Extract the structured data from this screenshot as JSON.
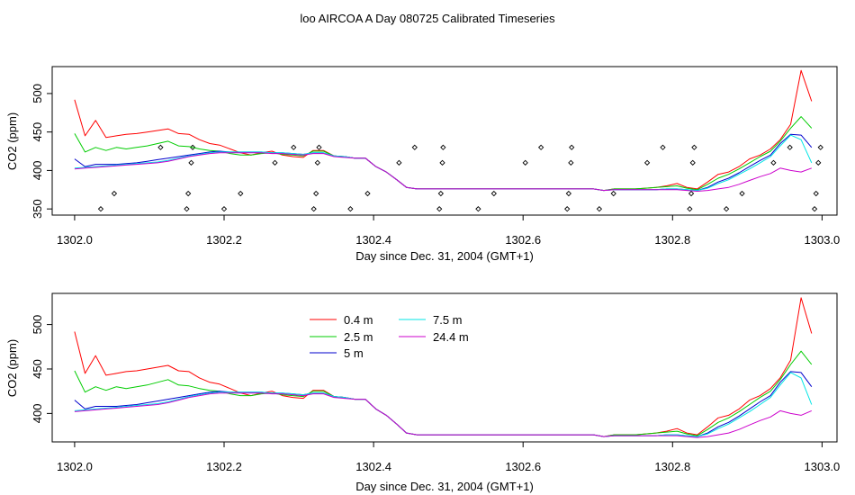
{
  "page": {
    "title": "loo AIRCOA A  Day 080725  Calibrated Timeseries"
  },
  "chart_data": [
    {
      "type": "line",
      "xlabel": "Day since Dec. 31, 2004 (GMT+1)",
      "ylabel": "CO2 (ppm)",
      "xlim": [
        1301.97,
        1303.02
      ],
      "ylim": [
        342,
        535
      ],
      "xticks": [
        1302.0,
        1302.2,
        1302.4,
        1302.6,
        1302.8,
        1303.0
      ],
      "xtick_labels": [
        "1302.0",
        "1302.2",
        "1302.4",
        "1302.6",
        "1302.8",
        "1303.0"
      ],
      "yticks": [
        350,
        400,
        450,
        500
      ],
      "ytick_labels": [
        "350",
        "400",
        "450",
        "500"
      ],
      "legend": null,
      "flags": {
        "x": [
          1302.035,
          1302.053,
          1302.115,
          1302.15,
          1302.152,
          1302.156,
          1302.158,
          1302.2,
          1302.222,
          1302.268,
          1302.293,
          1302.32,
          1302.323,
          1302.325,
          1302.327,
          1302.369,
          1302.392,
          1302.434,
          1302.455,
          1302.488,
          1302.49,
          1302.492,
          1302.493,
          1302.54,
          1302.561,
          1302.603,
          1302.624,
          1302.659,
          1302.661,
          1302.664,
          1302.665,
          1302.702,
          1302.721,
          1302.766,
          1302.787,
          1302.823,
          1302.825,
          1302.827,
          1302.829,
          1302.872,
          1302.893,
          1302.935,
          1302.957,
          1302.99,
          1302.992,
          1302.995,
          1302.998
        ],
        "y": [
          350,
          370,
          430,
          350,
          370,
          410,
          430,
          350,
          370,
          410,
          430,
          350,
          370,
          410,
          430,
          350,
          370,
          410,
          430,
          350,
          370,
          410,
          430,
          350,
          370,
          410,
          430,
          350,
          370,
          410,
          430,
          350,
          370,
          410,
          430,
          350,
          370,
          410,
          430,
          350,
          370,
          410,
          430,
          350,
          370,
          410,
          430
        ]
      },
      "x": [
        1302.0,
        1302.014,
        1302.028,
        1302.042,
        1302.056,
        1302.069,
        1302.083,
        1302.097,
        1302.111,
        1302.125,
        1302.139,
        1302.153,
        1302.167,
        1302.181,
        1302.194,
        1302.208,
        1302.222,
        1302.236,
        1302.25,
        1302.264,
        1302.278,
        1302.292,
        1302.306,
        1302.319,
        1302.333,
        1302.347,
        1302.361,
        1302.375,
        1302.389,
        1302.403,
        1302.417,
        1302.431,
        1302.444,
        1302.458,
        1302.472,
        1302.486,
        1302.5,
        1302.514,
        1302.528,
        1302.542,
        1302.556,
        1302.569,
        1302.583,
        1302.597,
        1302.611,
        1302.625,
        1302.639,
        1302.653,
        1302.667,
        1302.681,
        1302.694,
        1302.708,
        1302.722,
        1302.736,
        1302.75,
        1302.764,
        1302.778,
        1302.792,
        1302.806,
        1302.819,
        1302.833,
        1302.847,
        1302.861,
        1302.875,
        1302.889,
        1302.903,
        1302.917,
        1302.931,
        1302.944,
        1302.958,
        1302.972,
        1302.986
      ],
      "series": [
        {
          "name": "0.4 m",
          "color": "#ff0000",
          "values": [
            492,
            445,
            465,
            443,
            445,
            447,
            448,
            450,
            452,
            454,
            448,
            447,
            440,
            435,
            433,
            428,
            423,
            420,
            423,
            425,
            420,
            418,
            417,
            426,
            426,
            419,
            418,
            416,
            416,
            405,
            398,
            388,
            378,
            376,
            376,
            376,
            376,
            376,
            376,
            376,
            376,
            376,
            376,
            376,
            376,
            376,
            376,
            376,
            376,
            376,
            376,
            374,
            376,
            376,
            376,
            377,
            378,
            380,
            383,
            378,
            376,
            385,
            395,
            398,
            405,
            415,
            420,
            428,
            440,
            460,
            530,
            490
          ]
        },
        {
          "name": "2.5 m",
          "color": "#00cc00",
          "values": [
            448,
            424,
            430,
            426,
            430,
            428,
            430,
            432,
            435,
            438,
            432,
            431,
            428,
            426,
            425,
            422,
            420,
            420,
            422,
            423,
            421,
            420,
            419,
            425,
            425,
            419,
            418,
            416,
            416,
            405,
            398,
            388,
            378,
            376,
            376,
            376,
            376,
            376,
            376,
            376,
            376,
            376,
            376,
            376,
            376,
            376,
            376,
            376,
            376,
            376,
            376,
            374,
            376,
            376,
            376,
            377,
            378,
            379,
            380,
            377,
            375,
            382,
            390,
            395,
            402,
            410,
            418,
            425,
            438,
            455,
            470,
            455
          ]
        },
        {
          "name": "5 m",
          "color": "#0000cc",
          "values": [
            415,
            405,
            408,
            408,
            408,
            409,
            410,
            412,
            414,
            416,
            418,
            420,
            422,
            424,
            425,
            424,
            424,
            424,
            424,
            423,
            423,
            422,
            421,
            423,
            423,
            419,
            418,
            416,
            416,
            405,
            398,
            388,
            378,
            376,
            376,
            376,
            376,
            376,
            376,
            376,
            376,
            376,
            376,
            376,
            376,
            376,
            376,
            376,
            376,
            376,
            376,
            374,
            375,
            375,
            375,
            375,
            375,
            376,
            376,
            375,
            374,
            378,
            385,
            390,
            397,
            405,
            413,
            420,
            435,
            447,
            446,
            430
          ]
        },
        {
          "name": "7.5 m",
          "color": "#00e5e5",
          "values": [
            403,
            404,
            405,
            406,
            407,
            408,
            409,
            410,
            411,
            413,
            416,
            419,
            421,
            423,
            424,
            424,
            424,
            424,
            424,
            423,
            423,
            422,
            421,
            423,
            423,
            419,
            418,
            416,
            416,
            405,
            398,
            388,
            378,
            376,
            376,
            376,
            376,
            376,
            376,
            376,
            376,
            376,
            376,
            376,
            376,
            376,
            376,
            376,
            376,
            376,
            376,
            374,
            375,
            375,
            375,
            375,
            375,
            376,
            376,
            375,
            374,
            377,
            383,
            388,
            395,
            402,
            410,
            418,
            432,
            446,
            440,
            410
          ]
        },
        {
          "name": "24.4 m",
          "color": "#cc00cc",
          "values": [
            402,
            403,
            404,
            405,
            406,
            407,
            408,
            409,
            410,
            412,
            415,
            418,
            420,
            422,
            423,
            423,
            423,
            423,
            423,
            422,
            422,
            421,
            420,
            422,
            422,
            418,
            417,
            416,
            416,
            405,
            398,
            388,
            378,
            376,
            376,
            376,
            376,
            376,
            376,
            376,
            376,
            376,
            376,
            376,
            376,
            376,
            376,
            376,
            376,
            376,
            376,
            374,
            375,
            375,
            375,
            375,
            375,
            375,
            375,
            374,
            373,
            374,
            376,
            378,
            382,
            387,
            392,
            396,
            403,
            400,
            398,
            403
          ]
        }
      ]
    },
    {
      "type": "line",
      "xlabel": "Day since Dec. 31, 2004 (GMT+1)",
      "ylabel": "CO2 (ppm)",
      "xlim": [
        1301.97,
        1303.02
      ],
      "ylim": [
        368,
        535
      ],
      "xticks": [
        1302.0,
        1302.2,
        1302.4,
        1302.6,
        1302.8,
        1303.0
      ],
      "xtick_labels": [
        "1302.0",
        "1302.2",
        "1302.4",
        "1302.6",
        "1302.8",
        "1303.0"
      ],
      "yticks": [
        400,
        450,
        500
      ],
      "ytick_labels": [
        "400",
        "450",
        "500"
      ],
      "legend": {
        "placement": "top-left",
        "entries": [
          {
            "label": "0.4 m",
            "color": "#ff0000"
          },
          {
            "label": "2.5 m",
            "color": "#00cc00"
          },
          {
            "label": "5 m",
            "color": "#0000cc"
          },
          {
            "label": "7.5 m",
            "color": "#00e5e5"
          },
          {
            "label": "24.4 m",
            "color": "#cc00cc"
          }
        ]
      },
      "x": [
        1302.0,
        1302.014,
        1302.028,
        1302.042,
        1302.056,
        1302.069,
        1302.083,
        1302.097,
        1302.111,
        1302.125,
        1302.139,
        1302.153,
        1302.167,
        1302.181,
        1302.194,
        1302.208,
        1302.222,
        1302.236,
        1302.25,
        1302.264,
        1302.278,
        1302.292,
        1302.306,
        1302.319,
        1302.333,
        1302.347,
        1302.361,
        1302.375,
        1302.389,
        1302.403,
        1302.417,
        1302.431,
        1302.444,
        1302.458,
        1302.472,
        1302.486,
        1302.5,
        1302.514,
        1302.528,
        1302.542,
        1302.556,
        1302.569,
        1302.583,
        1302.597,
        1302.611,
        1302.625,
        1302.639,
        1302.653,
        1302.667,
        1302.681,
        1302.694,
        1302.708,
        1302.722,
        1302.736,
        1302.75,
        1302.764,
        1302.778,
        1302.792,
        1302.806,
        1302.819,
        1302.833,
        1302.847,
        1302.861,
        1302.875,
        1302.889,
        1302.903,
        1302.917,
        1302.931,
        1302.944,
        1302.958,
        1302.972,
        1302.986
      ],
      "series": [
        {
          "name": "0.4 m",
          "color": "#ff0000",
          "values": [
            492,
            445,
            465,
            443,
            445,
            447,
            448,
            450,
            452,
            454,
            448,
            447,
            440,
            435,
            433,
            428,
            423,
            420,
            423,
            425,
            420,
            418,
            417,
            426,
            426,
            419,
            418,
            416,
            416,
            405,
            398,
            388,
            378,
            376,
            376,
            376,
            376,
            376,
            376,
            376,
            376,
            376,
            376,
            376,
            376,
            376,
            376,
            376,
            376,
            376,
            376,
            374,
            376,
            376,
            376,
            377,
            378,
            380,
            383,
            378,
            376,
            385,
            395,
            398,
            405,
            415,
            420,
            428,
            440,
            460,
            530,
            490
          ]
        },
        {
          "name": "2.5 m",
          "color": "#00cc00",
          "values": [
            448,
            424,
            430,
            426,
            430,
            428,
            430,
            432,
            435,
            438,
            432,
            431,
            428,
            426,
            425,
            422,
            420,
            420,
            422,
            423,
            421,
            420,
            419,
            425,
            425,
            419,
            418,
            416,
            416,
            405,
            398,
            388,
            378,
            376,
            376,
            376,
            376,
            376,
            376,
            376,
            376,
            376,
            376,
            376,
            376,
            376,
            376,
            376,
            376,
            376,
            376,
            374,
            376,
            376,
            376,
            377,
            378,
            379,
            380,
            377,
            375,
            382,
            390,
            395,
            402,
            410,
            418,
            425,
            438,
            455,
            470,
            455
          ]
        },
        {
          "name": "5 m",
          "color": "#0000cc",
          "values": [
            415,
            405,
            408,
            408,
            408,
            409,
            410,
            412,
            414,
            416,
            418,
            420,
            422,
            424,
            425,
            424,
            424,
            424,
            424,
            423,
            423,
            422,
            421,
            423,
            423,
            419,
            418,
            416,
            416,
            405,
            398,
            388,
            378,
            376,
            376,
            376,
            376,
            376,
            376,
            376,
            376,
            376,
            376,
            376,
            376,
            376,
            376,
            376,
            376,
            376,
            376,
            374,
            375,
            375,
            375,
            375,
            375,
            376,
            376,
            375,
            374,
            378,
            385,
            390,
            397,
            405,
            413,
            420,
            435,
            447,
            446,
            430
          ]
        },
        {
          "name": "7.5 m",
          "color": "#00e5e5",
          "values": [
            403,
            404,
            405,
            406,
            407,
            408,
            409,
            410,
            411,
            413,
            416,
            419,
            421,
            423,
            424,
            424,
            424,
            424,
            424,
            423,
            423,
            422,
            421,
            423,
            423,
            419,
            418,
            416,
            416,
            405,
            398,
            388,
            378,
            376,
            376,
            376,
            376,
            376,
            376,
            376,
            376,
            376,
            376,
            376,
            376,
            376,
            376,
            376,
            376,
            376,
            376,
            374,
            375,
            375,
            375,
            375,
            375,
            376,
            376,
            375,
            374,
            377,
            383,
            388,
            395,
            402,
            410,
            418,
            432,
            446,
            440,
            410
          ]
        },
        {
          "name": "24.4 m",
          "color": "#cc00cc",
          "values": [
            402,
            403,
            404,
            405,
            406,
            407,
            408,
            409,
            410,
            412,
            415,
            418,
            420,
            422,
            423,
            423,
            423,
            423,
            423,
            422,
            422,
            421,
            420,
            422,
            422,
            418,
            417,
            416,
            416,
            405,
            398,
            388,
            378,
            376,
            376,
            376,
            376,
            376,
            376,
            376,
            376,
            376,
            376,
            376,
            376,
            376,
            376,
            376,
            376,
            376,
            376,
            374,
            375,
            375,
            375,
            375,
            375,
            375,
            375,
            374,
            373,
            374,
            376,
            378,
            382,
            387,
            392,
            396,
            403,
            400,
            398,
            403
          ]
        }
      ]
    }
  ]
}
